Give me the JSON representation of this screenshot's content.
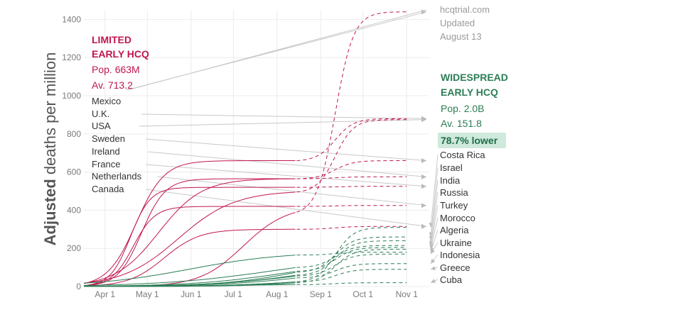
{
  "chart_data": {
    "type": "line",
    "title": "",
    "ylabel_bold": "Adjusted",
    "ylabel_rest": "deaths per million",
    "y_ticks": [
      0,
      200,
      400,
      600,
      800,
      1000,
      1200,
      1400
    ],
    "ylim": [
      0,
      1450
    ],
    "x_ticks": [
      "Apr 1",
      "May 1",
      "Jun 1",
      "Jul 1",
      "Aug 1",
      "Sep 1",
      "Oct 1",
      "Nov 1"
    ],
    "xlim_days": [
      -15,
      230
    ],
    "last_actual_day": 136,
    "source": [
      "hcqtrial.com",
      "Updated",
      "August 13"
    ],
    "limited": {
      "heading": [
        "LIMITED",
        "EARLY HCQ"
      ],
      "pop": "Pop. 663M",
      "avg": "Av. 713.2",
      "color": "#c0174e",
      "countries": [
        {
          "name": "Mexico",
          "current": 390,
          "final": 1440,
          "mid": 98,
          "k": 0.065
        },
        {
          "name": "U.K.",
          "current": 660,
          "final": 880,
          "mid": 22,
          "k": 0.1
        },
        {
          "name": "USA",
          "current": 495,
          "final": 875,
          "mid": 52,
          "k": 0.05
        },
        {
          "name": "Sweden",
          "current": 565,
          "final": 660,
          "mid": 38,
          "k": 0.065
        },
        {
          "name": "Ireland",
          "current": 565,
          "final": 575,
          "mid": 26,
          "k": 0.12
        },
        {
          "name": "France",
          "current": 520,
          "final": 525,
          "mid": 18,
          "k": 0.14
        },
        {
          "name": "Netherlands",
          "current": 420,
          "final": 425,
          "mid": 20,
          "k": 0.13
        },
        {
          "name": "Canada",
          "current": 300,
          "final": 315,
          "mid": 42,
          "k": 0.08
        }
      ]
    },
    "widespread": {
      "heading": [
        "WIDESPREAD",
        "EARLY HCQ"
      ],
      "pop": "Pop. 2.0B",
      "avg": "Av. 151.8",
      "lower": "78.7% lower",
      "color": "#2c7d56",
      "countries": [
        {
          "name": "Costa Rica",
          "current": 25,
          "final": 310,
          "mid": 150,
          "k": 0.04
        },
        {
          "name": "Israel",
          "current": 75,
          "final": 260,
          "mid": 140,
          "k": 0.035
        },
        {
          "name": "India",
          "current": 60,
          "final": 240,
          "mid": 150,
          "k": 0.03
        },
        {
          "name": "Russia",
          "current": 100,
          "final": 215,
          "mid": 120,
          "k": 0.025
        },
        {
          "name": "Turkey",
          "current": 80,
          "final": 205,
          "mid": 130,
          "k": 0.03
        },
        {
          "name": "Morocco",
          "current": 20,
          "final": 195,
          "mid": 160,
          "k": 0.04
        },
        {
          "name": "Algeria",
          "current": 165,
          "final": 180,
          "mid": 60,
          "k": 0.03
        },
        {
          "name": "Ukraine",
          "current": 55,
          "final": 170,
          "mid": 140,
          "k": 0.03
        },
        {
          "name": "Indonesia",
          "current": 45,
          "final": 120,
          "mid": 150,
          "k": 0.03
        },
        {
          "name": "Greece",
          "current": 25,
          "final": 90,
          "mid": 160,
          "k": 0.03
        },
        {
          "name": "Cuba",
          "current": 10,
          "final": 20,
          "mid": 100,
          "k": 0.03
        }
      ]
    }
  }
}
